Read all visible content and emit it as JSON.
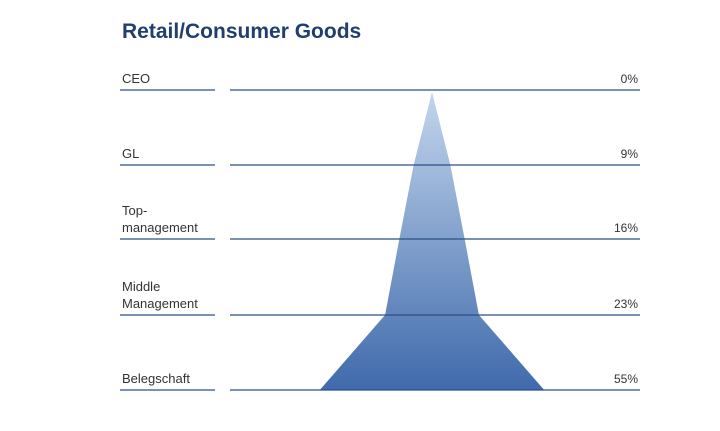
{
  "chart_data": {
    "type": "pyramid",
    "title": "Retail/Consumer Goods",
    "categories": [
      "CEO",
      "GL",
      "Top-\nmanagement",
      "Middle\nManagement",
      "Belegschaft"
    ],
    "values": [
      0,
      9,
      16,
      23,
      55
    ],
    "value_labels": [
      "0%",
      "9%",
      "16%",
      "23%",
      "55%"
    ],
    "color": "#3f6aab"
  }
}
